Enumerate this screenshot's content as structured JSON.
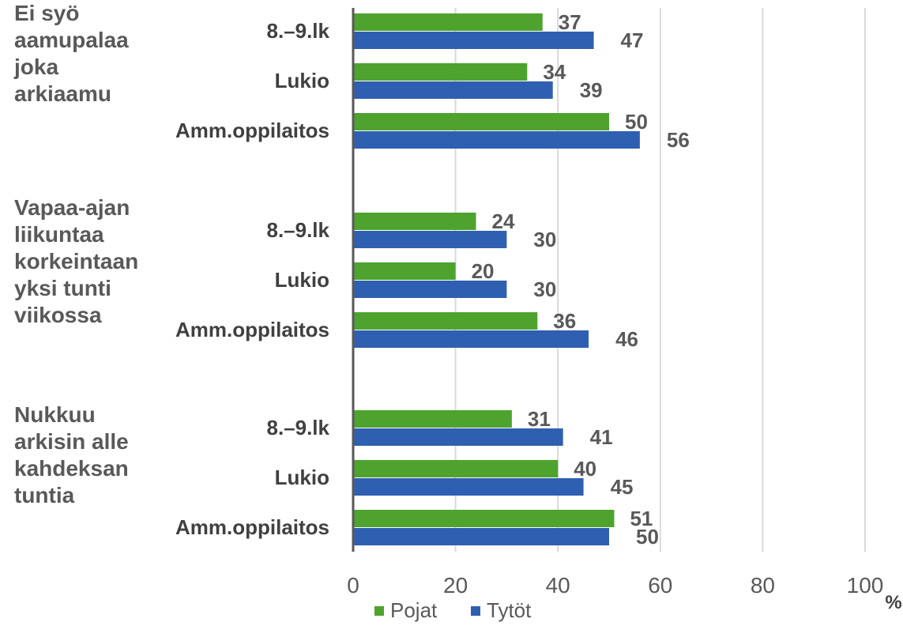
{
  "chart_data": {
    "type": "bar",
    "orientation": "horizontal",
    "unit": "%",
    "xlim": [
      0,
      100
    ],
    "ticks": [
      0,
      20,
      40,
      60,
      80,
      100
    ],
    "tick_labels": [
      "0",
      "20",
      "40",
      "60",
      "80",
      "100"
    ],
    "grid": "vertical",
    "legend_position": "bottom",
    "colors": {
      "Pojat": "#4da32e",
      "Tytöt": "#2f5fb0"
    },
    "series": [
      {
        "name": "Pojat",
        "color": "#4da32e"
      },
      {
        "name": "Tytöt",
        "color": "#2f5fb0"
      }
    ],
    "groups": [
      {
        "label_lines": [
          "Ei syö",
          "aamupalaa",
          "joka",
          "arkiaamu"
        ],
        "categories": [
          {
            "label": "8.–9.lk",
            "values": [
              37,
              47
            ]
          },
          {
            "label": "Lukio",
            "values": [
              34,
              39
            ]
          },
          {
            "label": "Amm.oppilaitos",
            "values": [
              50,
              56
            ]
          }
        ]
      },
      {
        "label_lines": [
          "Vapaa-ajan",
          "liikuntaa",
          "korkeintaan",
          "yksi tunti",
          "viikossa"
        ],
        "categories": [
          {
            "label": "8.–9.lk",
            "values": [
              24,
              30
            ]
          },
          {
            "label": "Lukio",
            "values": [
              20,
              30
            ]
          },
          {
            "label": "Amm.oppilaitos",
            "values": [
              36,
              46
            ]
          }
        ]
      },
      {
        "label_lines": [
          "Nukkuu",
          "arkisin alle",
          "kahdeksan",
          "tuntia"
        ],
        "categories": [
          {
            "label": "8.–9.lk",
            "values": [
              31,
              41
            ]
          },
          {
            "label": "Lukio",
            "values": [
              40,
              45
            ]
          },
          {
            "label": "Amm.oppilaitos",
            "values": [
              51,
              50
            ]
          }
        ]
      }
    ]
  }
}
